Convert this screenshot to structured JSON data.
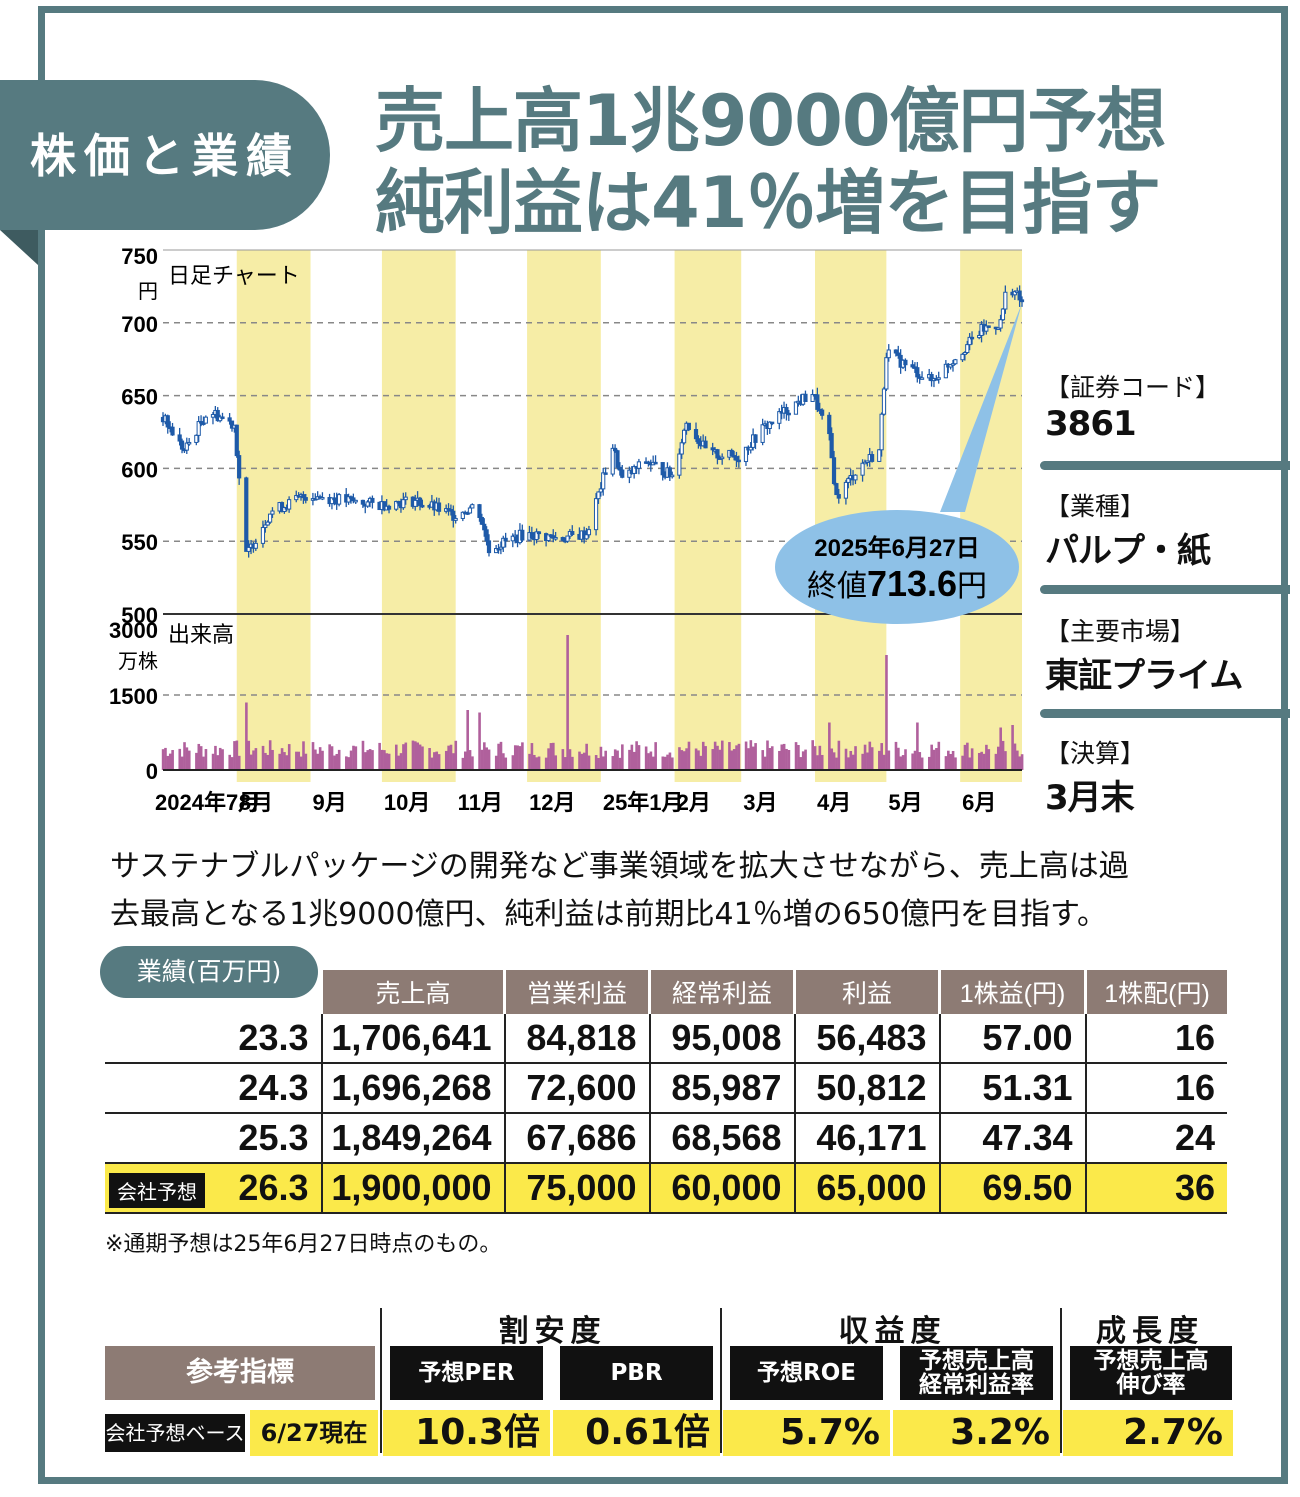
{
  "header": {
    "tab": "株価と業績",
    "title_line1": "売上高1兆9000億円予想",
    "title_line2": "純利益は41％増を目指す"
  },
  "chart_data": [
    {
      "type": "candlestick",
      "title": "日足チャート",
      "ylabel": "円",
      "ylim": [
        500,
        750
      ],
      "yticks": [
        "750",
        "700",
        "650",
        "600",
        "550",
        "500"
      ],
      "months": [
        "2024年7月",
        "8月",
        "9月",
        "10月",
        "11月",
        "12月",
        "25年1月",
        "2月",
        "3月",
        "4月",
        "5月",
        "6月"
      ],
      "approx_close_path": [
        {
          "d": "2024-07-01",
          "v": 635
        },
        {
          "d": "2024-07-10",
          "v": 612
        },
        {
          "d": "2024-07-20",
          "v": 640
        },
        {
          "d": "2024-07-31",
          "v": 630
        },
        {
          "d": "2024-08-05",
          "v": 540
        },
        {
          "d": "2024-08-15",
          "v": 570
        },
        {
          "d": "2024-08-31",
          "v": 582
        },
        {
          "d": "2024-09-15",
          "v": 578
        },
        {
          "d": "2024-09-30",
          "v": 575
        },
        {
          "d": "2024-10-15",
          "v": 578
        },
        {
          "d": "2024-10-31",
          "v": 568
        },
        {
          "d": "2024-11-10",
          "v": 575
        },
        {
          "d": "2024-11-15",
          "v": 545
        },
        {
          "d": "2024-11-30",
          "v": 555
        },
        {
          "d": "2024-12-15",
          "v": 552
        },
        {
          "d": "2024-12-26",
          "v": 555
        },
        {
          "d": "2025-01-06",
          "v": 615
        },
        {
          "d": "2025-01-10",
          "v": 592
        },
        {
          "d": "2025-01-20",
          "v": 605
        },
        {
          "d": "2025-01-31",
          "v": 595
        },
        {
          "d": "2025-02-06",
          "v": 632
        },
        {
          "d": "2025-02-15",
          "v": 610
        },
        {
          "d": "2025-02-28",
          "v": 608
        },
        {
          "d": "2025-03-10",
          "v": 627
        },
        {
          "d": "2025-03-20",
          "v": 640
        },
        {
          "d": "2025-03-31",
          "v": 652
        },
        {
          "d": "2025-04-07",
          "v": 620
        },
        {
          "d": "2025-04-10",
          "v": 580
        },
        {
          "d": "2025-04-20",
          "v": 602
        },
        {
          "d": "2025-04-28",
          "v": 612
        },
        {
          "d": "2025-05-01",
          "v": 680
        },
        {
          "d": "2025-05-10",
          "v": 670
        },
        {
          "d": "2025-05-20",
          "v": 660
        },
        {
          "d": "2025-05-31",
          "v": 678
        },
        {
          "d": "2025-06-10",
          "v": 695
        },
        {
          "d": "2025-06-18",
          "v": 700
        },
        {
          "d": "2025-06-21",
          "v": 728
        },
        {
          "d": "2025-06-27",
          "v": 713.6
        }
      ],
      "callout": {
        "date": "2025年6月27日",
        "label": "終値",
        "value": "713.6",
        "unit": "円"
      }
    },
    {
      "type": "bar",
      "title": "出来高",
      "ylabel": "万株",
      "ylim": [
        0,
        3000
      ],
      "yticks": [
        "3000",
        "1500",
        "0"
      ],
      "approx_spikes": [
        {
          "d": "2024-08-05",
          "v": 1350
        },
        {
          "d": "2024-11-06",
          "v": 1200
        },
        {
          "d": "2024-11-11",
          "v": 1150
        },
        {
          "d": "2024-12-18",
          "v": 2700
        },
        {
          "d": "2025-04-07",
          "v": 950
        },
        {
          "d": "2025-05-01",
          "v": 2300
        },
        {
          "d": "2025-05-14",
          "v": 950
        },
        {
          "d": "2025-06-18",
          "v": 850
        },
        {
          "d": "2025-06-23",
          "v": 900
        }
      ],
      "baseline": 400,
      "color": "#b0609c"
    }
  ],
  "sidebar": {
    "items": [
      {
        "label": "【証券コード】",
        "value": "3861"
      },
      {
        "label": "【業種】",
        "value": "パルプ・紙"
      },
      {
        "label": "【主要市場】",
        "value": "東証プライム"
      },
      {
        "label": "【決算】",
        "value": "3月末"
      }
    ]
  },
  "description": {
    "line1": "サステナブルパッケージの開発など事業領域を拡大させながら、売上高は過",
    "line2": "去最高となる1兆9000億円、純利益は前期比41％増の650億円を目指す。"
  },
  "performance": {
    "badge": "業績(百万円)",
    "columns": [
      "売上高",
      "営業利益",
      "経常利益",
      "利益",
      "1株益(円)",
      "1株配(円)"
    ],
    "rows": [
      {
        "period": "23.3",
        "values": [
          "1,706,641",
          "84,818",
          "95,008",
          "56,483",
          "57.00",
          "16"
        ]
      },
      {
        "period": "24.3",
        "values": [
          "1,696,268",
          "72,600",
          "85,987",
          "50,812",
          "51.31",
          "16"
        ]
      },
      {
        "period": "25.3",
        "values": [
          "1,849,264",
          "67,686",
          "68,568",
          "46,171",
          "47.34",
          "24"
        ]
      },
      {
        "period": "26.3",
        "tag": "会社予想",
        "values": [
          "1,900,000",
          "75,000",
          "60,000",
          "65,000",
          "69.50",
          "36"
        ]
      }
    ],
    "note": "※通期予想は25年6月27日時点のもの。"
  },
  "metrics": {
    "groups": [
      "割安度",
      "収益度",
      "成長度"
    ],
    "ref_label": "参考指標",
    "base_label": "会社予想ベース",
    "base_date": "6/27現在",
    "items": [
      {
        "label": "予想PER",
        "value": "10.3倍"
      },
      {
        "label": "PBR",
        "value": "0.61倍"
      },
      {
        "label": "予想ROE",
        "value": "5.7%"
      },
      {
        "label": "予想売上高 経常利益率",
        "value": "3.2%"
      },
      {
        "label": "予想売上高 伸び率",
        "value": "2.7%"
      }
    ]
  },
  "colors": {
    "accent": "#567a80",
    "band": "#f6eda6",
    "candle": "#1e5aa8",
    "volume": "#b0609c",
    "highlight": "#fbe94a",
    "table_header": "#8d7b74",
    "callout": "#8ec1e7"
  }
}
